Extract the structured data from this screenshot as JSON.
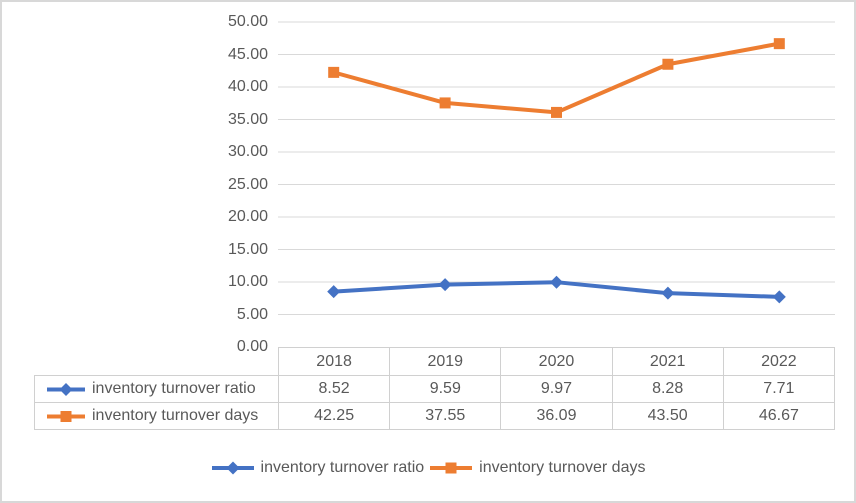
{
  "chart_data": {
    "type": "line",
    "title": "",
    "categories": [
      "2018",
      "2019",
      "2020",
      "2021",
      "2022"
    ],
    "series": [
      {
        "name": "inventory turnover ratio",
        "color": "#4472C4",
        "marker": "diamond",
        "values": [
          8.52,
          9.59,
          9.97,
          8.28,
          7.71
        ],
        "display_values": [
          "8.52",
          "9.59",
          "9.97",
          "8.28",
          "7.71"
        ]
      },
      {
        "name": "inventory turnover days",
        "color": "#ED7D31",
        "marker": "square",
        "values": [
          42.25,
          37.55,
          36.09,
          43.5,
          46.67
        ],
        "display_values": [
          "42.25",
          "37.55",
          "36.09",
          "43.50",
          "46.67"
        ]
      }
    ],
    "y_axis": {
      "min": 0,
      "max": 50,
      "step": 5,
      "tick_labels": [
        "0.00",
        "5.00",
        "10.00",
        "15.00",
        "20.00",
        "25.00",
        "30.00",
        "35.00",
        "40.00",
        "45.00",
        "50.00"
      ]
    },
    "grid": true,
    "legend_position": "bottom",
    "data_table_shown": true,
    "colors": {
      "series_blue": "#4472C4",
      "series_orange": "#ED7D31",
      "gridline": "#D9D9D9",
      "table_border": "#D0D0D0",
      "text": "#595959",
      "frame": "#D8D8D8",
      "background": "#FFFFFF"
    }
  }
}
